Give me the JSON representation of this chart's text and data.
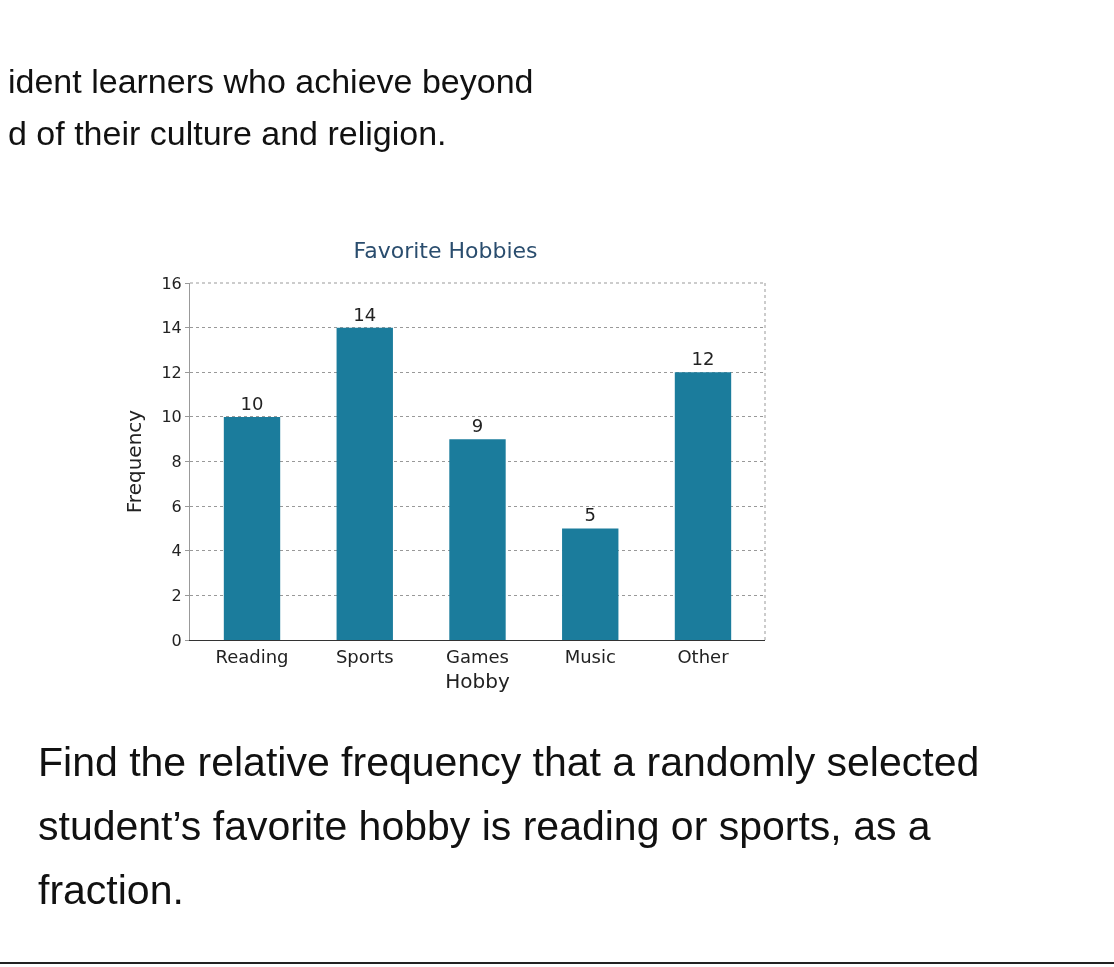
{
  "chart_data": {
    "type": "bar",
    "title": "Favorite Hobbies",
    "xlabel": "Hobby",
    "ylabel": "Frequency",
    "categories": [
      "Reading",
      "Sports",
      "Games",
      "Music",
      "Other"
    ],
    "values": [
      10,
      14,
      9,
      5,
      12
    ],
    "color": "#1b7c9c",
    "data_labels": true,
    "ylim": [
      0,
      16
    ],
    "yticks": [
      0,
      2,
      4,
      6,
      8,
      10,
      12,
      14,
      16
    ],
    "grid": "y",
    "annotations": [
      "ident learners who achieve beyond",
      "d of their culture and religion.",
      "Find the relative frequency that a randomly selected student’s favorite hobby is reading or sports, as a fraction."
    ]
  }
}
